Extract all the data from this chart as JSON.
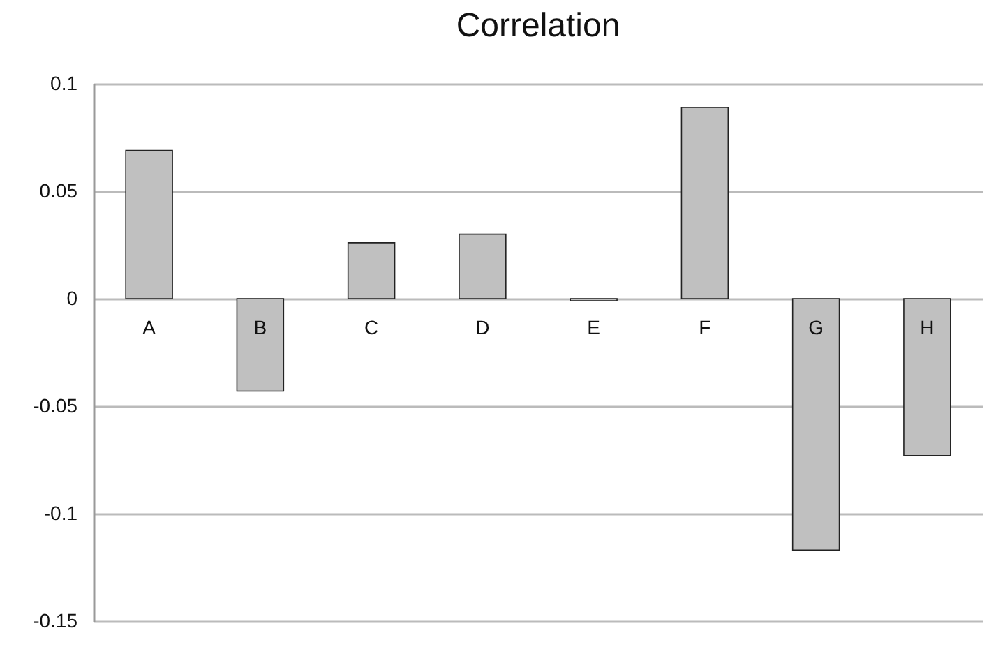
{
  "chart_data": {
    "type": "bar",
    "title": "Correlation",
    "categories": [
      "A",
      "B",
      "C",
      "D",
      "E",
      "F",
      "G",
      "H"
    ],
    "values": [
      0.069,
      -0.043,
      0.026,
      0.03,
      -0.001,
      0.089,
      -0.117,
      -0.073
    ],
    "color": "#c0c0c0",
    "ylim": [
      -0.15,
      0.1
    ],
    "yticks": [
      -0.15,
      -0.1,
      -0.05,
      0,
      0.05,
      0.1
    ],
    "grid": "y"
  }
}
